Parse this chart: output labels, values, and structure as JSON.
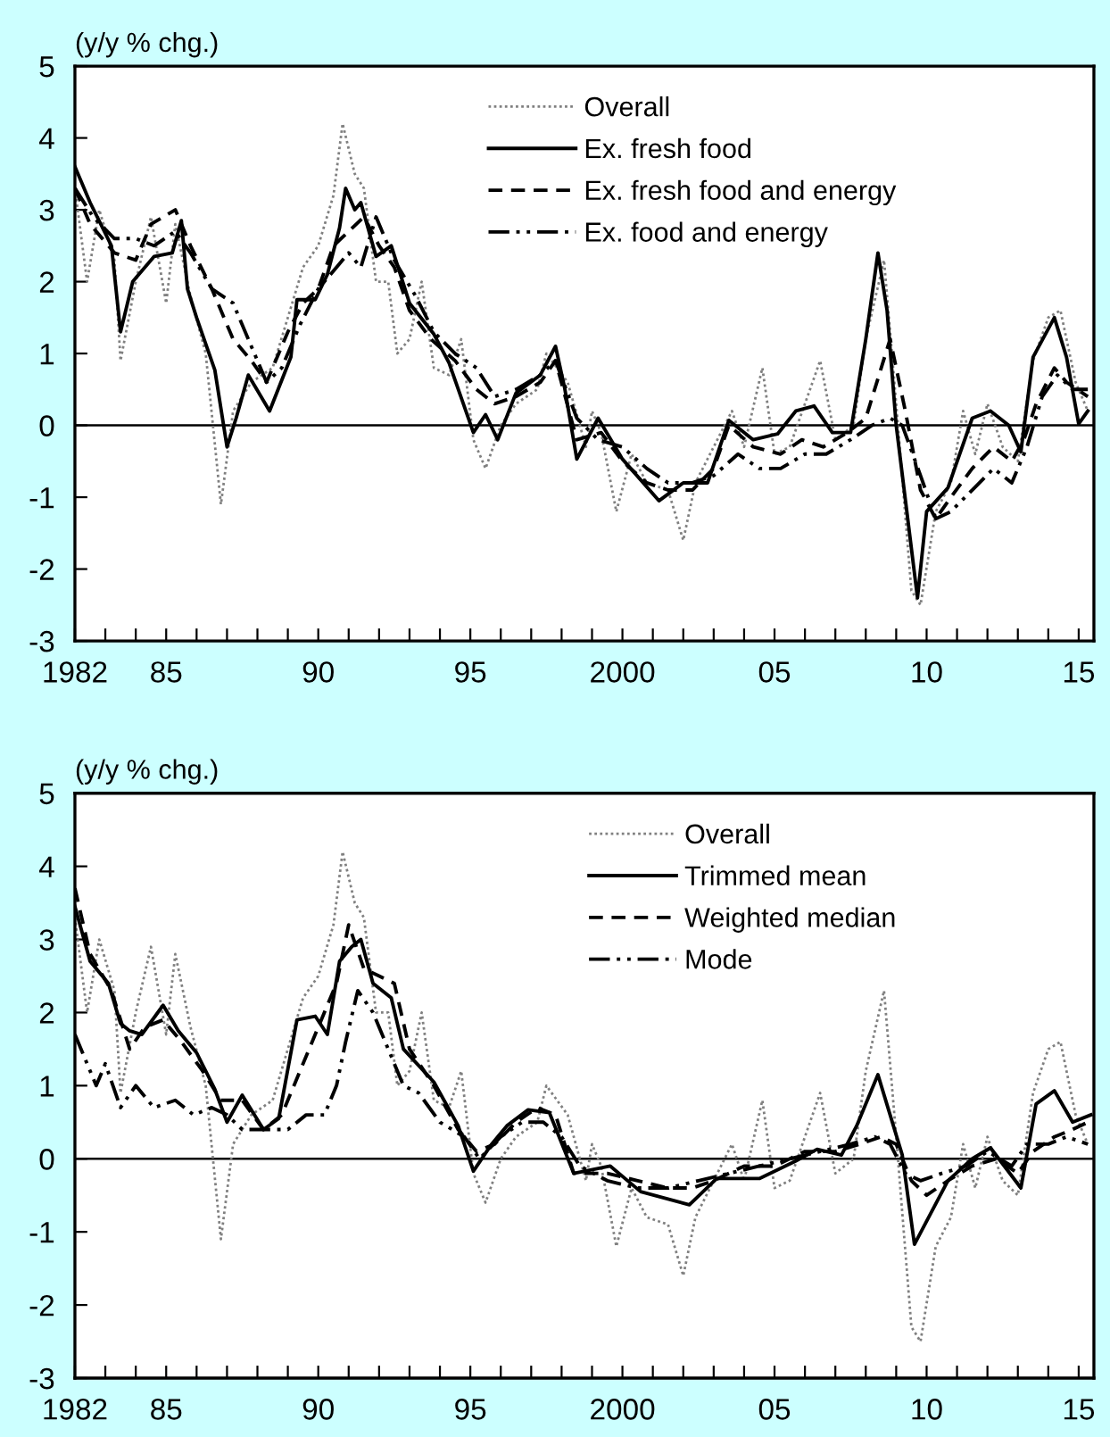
{
  "chart_data": [
    {
      "type": "line",
      "ylabel": "(y/y % chg.)",
      "xlim": [
        1982,
        2015.5
      ],
      "ylim": [
        -3,
        5
      ],
      "yticks": [
        -3,
        -2,
        -1,
        0,
        1,
        2,
        3,
        4,
        5
      ],
      "xticks": [
        {
          "value": 1982,
          "label": "1982"
        },
        {
          "value": 1985,
          "label": "85"
        },
        {
          "value": 1990,
          "label": "90"
        },
        {
          "value": 1995,
          "label": "95"
        },
        {
          "value": 2000,
          "label": "2000"
        },
        {
          "value": 2005,
          "label": "05"
        },
        {
          "value": 2010,
          "label": "10"
        },
        {
          "value": 2015,
          "label": "15"
        },
        {
          "value": 1983,
          "label": null
        },
        {
          "value": 1984,
          "label": null
        },
        {
          "value": 1986,
          "label": null
        },
        {
          "value": 1987,
          "label": null
        },
        {
          "value": 1988,
          "label": null
        },
        {
          "value": 1989,
          "label": null
        },
        {
          "value": 1991,
          "label": null
        },
        {
          "value": 1992,
          "label": null
        },
        {
          "value": 1993,
          "label": null
        },
        {
          "value": 1994,
          "label": null
        },
        {
          "value": 1996,
          "label": null
        },
        {
          "value": 1997,
          "label": null
        },
        {
          "value": 1998,
          "label": null
        },
        {
          "value": 1999,
          "label": null
        },
        {
          "value": 2001,
          "label": null
        },
        {
          "value": 2002,
          "label": null
        },
        {
          "value": 2003,
          "label": null
        },
        {
          "value": 2004,
          "label": null
        },
        {
          "value": 2006,
          "label": null
        },
        {
          "value": 2007,
          "label": null
        },
        {
          "value": 2008,
          "label": null
        },
        {
          "value": 2009,
          "label": null
        },
        {
          "value": 2011,
          "label": null
        },
        {
          "value": 2012,
          "label": null
        },
        {
          "value": 2013,
          "label": null
        },
        {
          "value": 2014,
          "label": null
        }
      ],
      "ref_lines": [
        {
          "axis": "y",
          "value": 0,
          "color": "#000000",
          "line_style": "solid"
        }
      ],
      "grid": false,
      "legend": "top right",
      "marker": "none",
      "series": [
        {
          "name": "Overall",
          "color": "#808080",
          "line_style": "dotted",
          "x": [
            1982.0,
            1982.4,
            1982.8,
            1983.3,
            1983.5,
            1984.0,
            1984.5,
            1985.0,
            1985.3,
            1985.8,
            1986.3,
            1986.8,
            1987.2,
            1987.8,
            1988.5,
            1989.0,
            1989.5,
            1990.0,
            1990.5,
            1990.8,
            1991.2,
            1991.5,
            1991.9,
            1992.3,
            1992.6,
            1993.0,
            1993.4,
            1993.8,
            1994.3,
            1994.7,
            1995.1,
            1995.5,
            1996.0,
            1996.5,
            1997.2,
            1997.5,
            1998.2,
            1998.8,
            1999.0,
            1999.3,
            1999.8,
            2000.3,
            2000.8,
            2001.5,
            2002.0,
            2002.4,
            2003.0,
            2003.6,
            2004.0,
            2004.6,
            2005.0,
            2005.5,
            2006.0,
            2006.5,
            2007.0,
            2007.6,
            2008.0,
            2008.6,
            2009.0,
            2009.5,
            2009.8,
            2010.3,
            2010.8,
            2011.2,
            2011.6,
            2012.0,
            2012.5,
            2013.0,
            2013.5,
            2014.0,
            2014.4,
            2014.9,
            2015.3
          ],
          "values": [
            3.3,
            2.0,
            3.0,
            2.3,
            0.9,
            2.0,
            2.9,
            1.7,
            2.8,
            1.8,
            1.0,
            -1.1,
            0.2,
            0.6,
            0.8,
            1.5,
            2.2,
            2.5,
            3.2,
            4.2,
            3.5,
            3.3,
            2.0,
            2.0,
            1.0,
            1.2,
            2.0,
            0.8,
            0.7,
            1.2,
            -0.2,
            -0.6,
            0.0,
            0.3,
            0.5,
            1.0,
            0.6,
            -0.3,
            0.2,
            -0.1,
            -1.2,
            -0.4,
            -0.8,
            -0.9,
            -1.6,
            -0.8,
            -0.3,
            0.2,
            -0.3,
            0.8,
            -0.4,
            -0.3,
            0.3,
            0.9,
            -0.2,
            0.0,
            1.2,
            2.3,
            0.3,
            -2.3,
            -2.5,
            -1.2,
            -0.8,
            0.2,
            -0.4,
            0.3,
            -0.3,
            -0.5,
            0.9,
            1.5,
            1.6,
            0.6,
            0.2
          ]
        },
        {
          "name": "Ex. fresh food",
          "color": "#000000",
          "line_style": "solid",
          "x": [
            1982.0,
            1982.5,
            1983.2,
            1983.5,
            1983.9,
            1984.6,
            1985.2,
            1985.5,
            1985.7,
            1986.0,
            1986.6,
            1987.0,
            1987.3,
            1987.7,
            1988.4,
            1989.1,
            1989.3,
            1989.9,
            1990.3,
            1990.7,
            1990.9,
            1991.2,
            1991.4,
            1991.9,
            1992.4,
            1993.0,
            1993.8,
            1994.3,
            1995.1,
            1995.5,
            1995.9,
            1996.5,
            1997.3,
            1997.8,
            1998.1,
            1998.5,
            1999.2,
            2000.0,
            2001.2,
            2002.0,
            2002.8,
            2003.5,
            2004.3,
            2005.1,
            2005.7,
            2006.3,
            2006.9,
            2007.5,
            2008.0,
            2008.4,
            2008.7,
            2009.0,
            2009.7,
            2010.0,
            2010.7,
            2011.5,
            2012.1,
            2012.7,
            2013.1,
            2013.5,
            2014.2,
            2014.6,
            2015.0,
            2015.3
          ],
          "values": [
            3.6,
            3.1,
            2.5,
            1.3,
            2.0,
            2.35,
            2.4,
            2.85,
            1.9,
            1.5,
            0.77,
            -0.3,
            0.1,
            0.7,
            0.2,
            0.95,
            1.75,
            1.75,
            2.1,
            2.75,
            3.3,
            3.0,
            3.1,
            2.35,
            2.5,
            1.7,
            1.27,
            0.87,
            -0.1,
            0.15,
            -0.2,
            0.45,
            0.7,
            1.1,
            0.52,
            -0.47,
            0.1,
            -0.47,
            -1.05,
            -0.8,
            -0.8,
            0.07,
            -0.2,
            -0.12,
            0.2,
            0.27,
            -0.1,
            -0.1,
            1.2,
            2.4,
            1.6,
            0.0,
            -2.4,
            -1.2,
            -0.87,
            0.1,
            0.2,
            0.0,
            -0.37,
            0.95,
            1.5,
            0.95,
            0.02,
            0.2
          ]
        },
        {
          "name": "Ex. fresh food and energy",
          "color": "#000000",
          "line_style": "dashed",
          "x": [
            1982.0,
            1982.5,
            1983.3,
            1984.0,
            1984.5,
            1985.3,
            1985.8,
            1986.5,
            1987.2,
            1987.8,
            1988.3,
            1989.0,
            1989.5,
            1990.0,
            1990.5,
            1991.0,
            1991.5,
            1992.0,
            1992.5,
            1993.0,
            1993.7,
            1994.5,
            1995.2,
            1995.8,
            1996.5,
            1997.3,
            1997.8,
            1998.5,
            1999.3,
            2000.0,
            2000.8,
            2001.5,
            2002.3,
            2003.0,
            2003.5,
            2004.3,
            2005.2,
            2005.9,
            2006.6,
            2007.4,
            2008.0,
            2008.8,
            2009.3,
            2009.8,
            2010.3,
            2010.8,
            2011.5,
            2012.2,
            2012.8,
            2013.2,
            2013.6,
            2014.2,
            2014.6,
            2015.3
          ],
          "values": [
            3.3,
            2.8,
            2.4,
            2.3,
            2.8,
            3.0,
            2.5,
            1.9,
            1.2,
            0.9,
            0.6,
            1.3,
            1.7,
            1.9,
            2.5,
            2.7,
            2.9,
            2.5,
            2.2,
            1.6,
            1.2,
            0.9,
            0.5,
            0.3,
            0.4,
            0.6,
            0.9,
            -0.2,
            -0.1,
            -0.5,
            -0.8,
            -0.9,
            -0.9,
            -0.6,
            0.0,
            -0.3,
            -0.4,
            -0.2,
            -0.3,
            -0.1,
            0.1,
            1.2,
            0.2,
            -0.9,
            -1.3,
            -1.0,
            -0.6,
            -0.3,
            -0.5,
            -0.2,
            0.3,
            0.8,
            0.6,
            0.4
          ]
        },
        {
          "name": "Ex. food and energy",
          "color": "#000000",
          "line_style": "dashdot",
          "x": [
            1982.0,
            1982.6,
            1983.3,
            1984.0,
            1984.6,
            1985.3,
            1985.8,
            1986.5,
            1987.2,
            1987.8,
            1988.3,
            1988.8,
            1989.4,
            1990.0,
            1990.6,
            1991.0,
            1991.4,
            1991.9,
            1992.5,
            1993.2,
            1993.8,
            1994.5,
            1995.2,
            1995.8,
            1996.5,
            1997.3,
            1997.8,
            1998.5,
            1999.2,
            2000.0,
            2000.8,
            2001.5,
            2002.3,
            2003.0,
            2003.8,
            2004.5,
            2005.2,
            2006.0,
            2006.7,
            2007.5,
            2008.2,
            2008.8,
            2009.2,
            2009.8,
            2010.3,
            2010.8,
            2011.5,
            2012.2,
            2012.8,
            2013.3,
            2013.8,
            2014.3,
            2014.8,
            2015.3
          ],
          "values": [
            3.3,
            2.9,
            2.6,
            2.6,
            2.5,
            2.7,
            2.4,
            1.9,
            1.7,
            1.1,
            0.6,
            0.8,
            1.4,
            1.9,
            2.2,
            2.4,
            2.2,
            2.9,
            2.3,
            1.8,
            1.3,
            1.0,
            0.8,
            0.4,
            0.5,
            0.7,
            0.9,
            0.1,
            -0.2,
            -0.3,
            -0.6,
            -0.8,
            -0.8,
            -0.7,
            -0.4,
            -0.6,
            -0.6,
            -0.4,
            -0.4,
            -0.2,
            0.0,
            0.1,
            0.0,
            -0.7,
            -1.3,
            -1.2,
            -0.9,
            -0.6,
            -0.8,
            -0.3,
            0.4,
            0.7,
            0.5,
            0.5
          ]
        }
      ]
    },
    {
      "type": "line",
      "ylabel": "(y/y % chg.)",
      "xlim": [
        1982,
        2015.5
      ],
      "ylim": [
        -3,
        5
      ],
      "yticks": [
        -3,
        -2,
        -1,
        0,
        1,
        2,
        3,
        4,
        5
      ],
      "xticks": [
        {
          "value": 1982,
          "label": "1982"
        },
        {
          "value": 1985,
          "label": "85"
        },
        {
          "value": 1990,
          "label": "90"
        },
        {
          "value": 1995,
          "label": "95"
        },
        {
          "value": 2000,
          "label": "2000"
        },
        {
          "value": 2005,
          "label": "05"
        },
        {
          "value": 2010,
          "label": "10"
        },
        {
          "value": 2015,
          "label": "15"
        },
        {
          "value": 1983,
          "label": null
        },
        {
          "value": 1984,
          "label": null
        },
        {
          "value": 1986,
          "label": null
        },
        {
          "value": 1987,
          "label": null
        },
        {
          "value": 1988,
          "label": null
        },
        {
          "value": 1989,
          "label": null
        },
        {
          "value": 1991,
          "label": null
        },
        {
          "value": 1992,
          "label": null
        },
        {
          "value": 1993,
          "label": null
        },
        {
          "value": 1994,
          "label": null
        },
        {
          "value": 1996,
          "label": null
        },
        {
          "value": 1997,
          "label": null
        },
        {
          "value": 1998,
          "label": null
        },
        {
          "value": 1999,
          "label": null
        },
        {
          "value": 2001,
          "label": null
        },
        {
          "value": 2002,
          "label": null
        },
        {
          "value": 2003,
          "label": null
        },
        {
          "value": 2004,
          "label": null
        },
        {
          "value": 2006,
          "label": null
        },
        {
          "value": 2007,
          "label": null
        },
        {
          "value": 2008,
          "label": null
        },
        {
          "value": 2009,
          "label": null
        },
        {
          "value": 2011,
          "label": null
        },
        {
          "value": 2012,
          "label": null
        },
        {
          "value": 2013,
          "label": null
        },
        {
          "value": 2014,
          "label": null
        }
      ],
      "ref_lines": [
        {
          "axis": "y",
          "value": 0,
          "color": "#000000",
          "line_style": "solid"
        }
      ],
      "grid": false,
      "legend": "top right",
      "marker": "none",
      "series": [
        {
          "name": "Overall",
          "color": "#808080",
          "line_style": "dotted",
          "x": [
            1982.0,
            1982.4,
            1982.8,
            1983.3,
            1983.5,
            1984.0,
            1984.5,
            1985.0,
            1985.3,
            1985.8,
            1986.3,
            1986.8,
            1987.2,
            1987.8,
            1988.5,
            1989.0,
            1989.5,
            1990.0,
            1990.5,
            1990.8,
            1991.2,
            1991.5,
            1991.9,
            1992.3,
            1992.6,
            1993.0,
            1993.4,
            1993.8,
            1994.3,
            1994.7,
            1995.1,
            1995.5,
            1996.0,
            1996.5,
            1997.2,
            1997.5,
            1998.2,
            1998.8,
            1999.0,
            1999.3,
            1999.8,
            2000.3,
            2000.8,
            2001.5,
            2002.0,
            2002.4,
            2003.0,
            2003.6,
            2004.0,
            2004.6,
            2005.0,
            2005.5,
            2006.0,
            2006.5,
            2007.0,
            2007.6,
            2008.0,
            2008.6,
            2009.0,
            2009.5,
            2009.8,
            2010.3,
            2010.8,
            2011.2,
            2011.6,
            2012.0,
            2012.5,
            2013.0,
            2013.5,
            2014.0,
            2014.4,
            2014.9,
            2015.3
          ],
          "values": [
            3.3,
            2.0,
            3.0,
            2.3,
            0.9,
            2.0,
            2.9,
            1.7,
            2.8,
            1.8,
            1.0,
            -1.1,
            0.2,
            0.6,
            0.8,
            1.5,
            2.2,
            2.5,
            3.2,
            4.2,
            3.5,
            3.3,
            2.0,
            2.0,
            1.0,
            1.2,
            2.0,
            0.8,
            0.7,
            1.2,
            -0.2,
            -0.6,
            0.0,
            0.3,
            0.5,
            1.0,
            0.6,
            -0.3,
            0.2,
            -0.1,
            -1.2,
            -0.4,
            -0.8,
            -0.9,
            -1.6,
            -0.8,
            -0.3,
            0.2,
            -0.3,
            0.8,
            -0.4,
            -0.3,
            0.3,
            0.9,
            -0.2,
            0.0,
            1.2,
            2.3,
            0.3,
            -2.3,
            -2.5,
            -1.2,
            -0.8,
            0.2,
            -0.4,
            0.3,
            -0.3,
            -0.5,
            0.9,
            1.5,
            1.6,
            0.6,
            0.2
          ]
        },
        {
          "name": "Trimmed mean",
          "color": "#000000",
          "line_style": "solid",
          "x": [
            1982.0,
            1982.5,
            1983.1,
            1983.5,
            1983.8,
            1984.2,
            1984.9,
            1985.4,
            1986.0,
            1986.6,
            1987.0,
            1987.5,
            1988.2,
            1988.7,
            1989.3,
            1989.9,
            1990.3,
            1990.7,
            1991.1,
            1991.4,
            1991.8,
            1992.4,
            1992.8,
            1993.8,
            1994.6,
            1995.1,
            1995.7,
            1996.2,
            1996.9,
            1997.6,
            1998.4,
            1999.6,
            2000.6,
            2002.2,
            2003.1,
            2004.5,
            2005.7,
            2006.4,
            2007.2,
            2007.7,
            2008.4,
            2009.2,
            2009.6,
            2010.7,
            2011.5,
            2012.1,
            2013.1,
            2013.6,
            2014.2,
            2014.8,
            2015.4
          ],
          "values": [
            3.45,
            2.7,
            2.4,
            1.85,
            1.75,
            1.7,
            2.1,
            1.75,
            1.45,
            0.95,
            0.5,
            0.87,
            0.4,
            0.55,
            1.9,
            1.95,
            1.7,
            2.7,
            2.9,
            3.0,
            2.4,
            2.2,
            1.5,
            1.05,
            0.45,
            -0.17,
            0.2,
            0.45,
            0.67,
            0.63,
            -0.2,
            -0.1,
            -0.45,
            -0.63,
            -0.27,
            -0.27,
            -0.03,
            0.13,
            0.05,
            0.45,
            1.15,
            0.05,
            -1.17,
            -0.3,
            0.0,
            0.15,
            -0.4,
            0.75,
            0.93,
            0.5,
            0.6
          ]
        },
        {
          "name": "Weighted median",
          "color": "#000000",
          "line_style": "dashed",
          "x": [
            1982.0,
            1982.5,
            1983.2,
            1983.8,
            1984.3,
            1984.9,
            1985.5,
            1986.2,
            1986.8,
            1987.5,
            1988.2,
            1988.8,
            1989.4,
            1990.0,
            1990.6,
            1991.0,
            1991.5,
            1992.0,
            1992.5,
            1993.0,
            1993.8,
            1994.6,
            1995.2,
            1995.8,
            1996.5,
            1997.2,
            1997.8,
            1998.4,
            1999.5,
            2000.5,
            2001.5,
            2002.3,
            2003.0,
            2004.0,
            2005.0,
            2006.0,
            2007.0,
            2007.8,
            2008.5,
            2009.0,
            2009.5,
            2010.0,
            2010.7,
            2011.5,
            2012.3,
            2013.0,
            2013.5,
            2014.2,
            2014.8,
            2015.3
          ],
          "values": [
            3.7,
            2.8,
            2.3,
            1.5,
            1.8,
            1.9,
            1.6,
            1.2,
            0.8,
            0.8,
            0.4,
            0.6,
            1.2,
            1.8,
            2.4,
            3.2,
            2.6,
            2.5,
            2.4,
            1.5,
            1.0,
            0.4,
            0.1,
            0.2,
            0.5,
            0.7,
            0.6,
            -0.2,
            -0.2,
            -0.3,
            -0.4,
            -0.4,
            -0.3,
            -0.1,
            -0.1,
            0.1,
            0.1,
            0.2,
            0.3,
            0.2,
            -0.3,
            -0.5,
            -0.3,
            -0.1,
            0.0,
            -0.2,
            0.1,
            0.3,
            0.4,
            0.5
          ]
        },
        {
          "name": "Mode",
          "color": "#000000",
          "line_style": "dashdot",
          "x": [
            1982.0,
            1982.3,
            1982.7,
            1983.0,
            1983.5,
            1984.0,
            1984.6,
            1985.3,
            1985.9,
            1986.5,
            1987.0,
            1987.5,
            1988.3,
            1989.0,
            1989.6,
            1990.2,
            1990.6,
            1990.9,
            1991.3,
            1991.8,
            1992.3,
            1992.8,
            1993.3,
            1994.0,
            1994.8,
            1995.3,
            1996.0,
            1996.7,
            1997.4,
            1998.0,
            1998.6,
            1999.5,
            2000.5,
            2001.5,
            2002.5,
            2003.5,
            2004.5,
            2005.5,
            2006.5,
            2007.5,
            2008.3,
            2008.8,
            2009.3,
            2009.8,
            2010.5,
            2011.3,
            2012.0,
            2012.8,
            2013.3,
            2014.0,
            2014.6,
            2015.3
          ],
          "values": [
            1.7,
            1.4,
            1.0,
            1.3,
            0.7,
            1.0,
            0.7,
            0.8,
            0.6,
            0.7,
            0.6,
            0.4,
            0.4,
            0.4,
            0.6,
            0.6,
            1.0,
            1.6,
            2.3,
            2.0,
            1.5,
            1.0,
            0.9,
            0.5,
            0.3,
            0.0,
            0.3,
            0.5,
            0.5,
            0.3,
            -0.1,
            -0.3,
            -0.4,
            -0.4,
            -0.3,
            -0.2,
            -0.1,
            0.0,
            0.1,
            0.2,
            0.3,
            0.2,
            -0.2,
            -0.3,
            -0.2,
            -0.1,
            0.1,
            -0.1,
            0.2,
            0.2,
            0.3,
            0.2
          ]
        }
      ]
    }
  ]
}
